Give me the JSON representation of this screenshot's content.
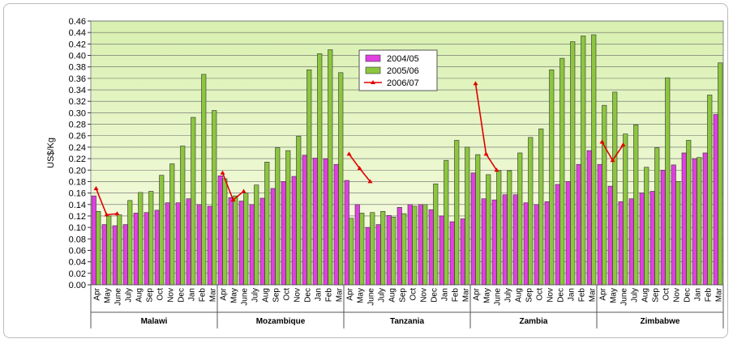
{
  "chart_data": {
    "type": "bar",
    "y_label": "US$/Kg",
    "groups": [
      "Malawi",
      "Mozambique",
      "Tanzania",
      "Zambia",
      "Zimbabwe"
    ],
    "categories": [
      "Apr",
      "May",
      "June",
      "July",
      "Aug",
      "Sep",
      "Oct",
      "Nov",
      "Dec",
      "Jan",
      "Feb",
      "Mar"
    ],
    "series": [
      {
        "name": "2004/05",
        "type": "bar",
        "color": "#e040e0",
        "values": [
          [
            0.155,
            0.105,
            0.103,
            0.105,
            0.125,
            0.126,
            0.13,
            0.143,
            0.143,
            0.15,
            0.14,
            0.137
          ],
          [
            0.19,
            0.152,
            0.146,
            0.14,
            0.151,
            0.168,
            0.18,
            0.189,
            0.226,
            0.221,
            0.22,
            0.21
          ],
          [
            0.182,
            0.14,
            0.1,
            0.105,
            0.121,
            0.135,
            0.14,
            0.14,
            0.131,
            0.12,
            0.11,
            0.115
          ],
          [
            0.195,
            0.15,
            0.148,
            0.157,
            0.157,
            0.143,
            0.14,
            0.145,
            0.175,
            0.18,
            0.21,
            0.234
          ],
          [
            0.21,
            0.172,
            0.145,
            0.15,
            0.16,
            0.163,
            0.2,
            0.209,
            0.23,
            0.22,
            0.23,
            0.297
          ]
        ]
      },
      {
        "name": "2005/06",
        "type": "bar",
        "color": "#8cc63f",
        "values": [
          [
            0.128,
            0.12,
            0.122,
            0.147,
            0.161,
            0.163,
            0.191,
            0.211,
            0.242,
            0.292,
            0.367,
            0.304
          ],
          [
            0.185,
            0.155,
            0.16,
            0.174,
            0.214,
            0.239,
            0.234,
            0.259,
            0.375,
            0.403,
            0.41,
            0.37
          ],
          [
            0.116,
            0.125,
            0.126,
            0.128,
            0.118,
            0.124,
            0.137,
            0.14,
            0.176,
            0.217,
            0.252,
            0.24
          ],
          [
            0.227,
            0.192,
            0.199,
            0.199,
            0.23,
            0.257,
            0.272,
            0.375,
            0.395,
            0.424,
            0.434,
            0.436
          ],
          [
            0.313,
            0.336,
            0.263,
            0.279,
            0.205,
            0.239,
            0.361,
            0.18,
            0.252,
            0.222,
            0.331,
            0.387
          ]
        ]
      },
      {
        "name": "2006/07",
        "type": "line",
        "color": "#e00000",
        "values": [
          [
            0.168,
            0.122,
            0.124,
            null,
            null,
            null,
            null,
            null,
            null,
            null,
            null,
            null
          ],
          [
            0.195,
            0.148,
            0.163,
            null,
            null,
            null,
            null,
            null,
            null,
            null,
            null,
            null
          ],
          [
            0.228,
            0.203,
            0.18,
            null,
            null,
            null,
            null,
            null,
            null,
            null,
            null,
            null
          ],
          [
            0.351,
            0.228,
            0.2,
            null,
            null,
            null,
            null,
            null,
            null,
            null,
            null,
            null
          ],
          [
            0.249,
            0.217,
            0.244,
            null,
            null,
            null,
            null,
            null,
            null,
            null,
            null,
            null
          ]
        ]
      }
    ],
    "ylim": [
      0,
      0.46
    ],
    "yticks": [
      {
        "value": 0,
        "label": "0.00"
      },
      {
        "value": 0.02,
        "label": "0.02"
      },
      {
        "value": 0.04,
        "label": "0.04"
      },
      {
        "value": 0.06,
        "label": "0.06"
      },
      {
        "value": 0.08,
        "label": "0.08"
      },
      {
        "value": 0.1,
        "label": "0.10"
      },
      {
        "value": 0.12,
        "label": "0.12"
      },
      {
        "value": 0.14,
        "label": "0.14"
      },
      {
        "value": 0.16,
        "label": "0.16"
      },
      {
        "value": 0.18,
        "label": "0.18"
      },
      {
        "value": 0.2,
        "label": "0.20"
      },
      {
        "value": 0.22,
        "label": "0.22"
      },
      {
        "value": 0.24,
        "label": "0.24"
      },
      {
        "value": 0.26,
        "label": "0.26"
      },
      {
        "value": 0.28,
        "label": "0.28"
      },
      {
        "value": 0.3,
        "label": "0.30"
      },
      {
        "value": 0.32,
        "label": "0.32"
      },
      {
        "value": 0.34,
        "label": "0.34"
      },
      {
        "value": 0.36,
        "label": "0.36"
      },
      {
        "value": 0.38,
        "label": "0.38"
      },
      {
        "value": 0.4,
        "label": "0.40"
      },
      {
        "value": 0.42,
        "label": "0.42"
      },
      {
        "value": 0.44,
        "label": "0.44"
      },
      {
        "value": 0.46,
        "label": "0.46"
      }
    ],
    "grid": true
  }
}
